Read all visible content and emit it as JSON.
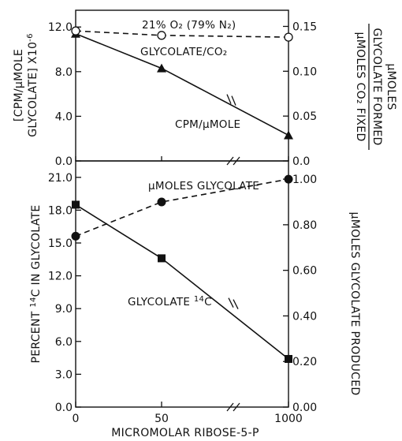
{
  "chart_data": [
    {
      "panel": "top",
      "type": "line",
      "x": [
        0,
        50,
        1000
      ],
      "xlim": [
        0,
        1000
      ],
      "x_break": true,
      "left_axis": {
        "label_line1": "[CPM/μMOLE",
        "label_line2": "GLYCOLATE] X10",
        "label_exp": "-6",
        "ylim": [
          0,
          13.5
        ],
        "ticks": [
          "0.0",
          "4.0",
          "8.0",
          "12.0"
        ],
        "tick_values": [
          0,
          4,
          8,
          12
        ]
      },
      "right_axis": {
        "label_line1": "μMOLES",
        "label_line2": "GLYCOLATE FORMED",
        "label_line3": "μMOLES CO₂ FIXED",
        "ylim": [
          0,
          0.168
        ],
        "ticks": [
          "0.0",
          "0.05",
          "0.10",
          "0.15"
        ],
        "tick_values": [
          0,
          0.05,
          0.1,
          0.15
        ]
      },
      "series": [
        {
          "name": "CPM/μMOLE",
          "axis": "left",
          "marker": "triangle",
          "line": "solid",
          "values": [
            11.4,
            8.3,
            2.3
          ]
        },
        {
          "name": "GLYCOLATE/CO₂",
          "axis": "right",
          "marker": "open-circle",
          "line": "dashed",
          "values": [
            0.145,
            0.14,
            0.138
          ]
        }
      ],
      "annotations": {
        "condition": "21% O₂ (79% N₂)",
        "glycolate_co2": "GLYCOLATE/CO₂",
        "cpm_label": "CPM/μMOLE"
      }
    },
    {
      "panel": "bottom",
      "type": "line",
      "x": [
        0,
        50,
        1000
      ],
      "xlim": [
        0,
        1000
      ],
      "x_break": true,
      "xlabel": "MICROMOLAR RIBOSE-5-P",
      "x_ticks": [
        "0",
        "50",
        "1000"
      ],
      "left_axis": {
        "label_prefix": "PERCENT ",
        "label_sup": "14",
        "label_suffix": "C IN GLYCOLATE",
        "ylim": [
          0,
          22.5
        ],
        "ticks": [
          "0.0",
          "3.0",
          "6.0",
          "9.0",
          "12.0",
          "15.0",
          "18.0",
          "21.0"
        ],
        "tick_values": [
          0,
          3,
          6,
          9,
          12,
          15,
          18,
          21
        ]
      },
      "right_axis": {
        "label": "μMOLES GLYCOLATE PRODUCED",
        "ylim": [
          0,
          1.08
        ],
        "ticks": [
          "0.00",
          "0.20",
          "0.40",
          "0.60",
          "0.80",
          "1.00"
        ],
        "tick_values": [
          0,
          0.2,
          0.4,
          0.6,
          0.8,
          1.0
        ]
      },
      "series": [
        {
          "name": "GLYCOLATE ¹⁴C",
          "axis": "left",
          "marker": "filled-square",
          "line": "solid",
          "values": [
            18.5,
            13.6,
            4.4
          ]
        },
        {
          "name": "μMOLES GLYCOLATE",
          "axis": "right",
          "marker": "filled-circle",
          "line": "dashed",
          "values": [
            0.75,
            0.9,
            1.0
          ]
        }
      ],
      "annotations": {
        "umoles_label": "μMOLES GLYCOLATE",
        "c14_prefix": "GLYCOLATE ",
        "c14_sup": "14",
        "c14_suffix": "C"
      }
    }
  ]
}
